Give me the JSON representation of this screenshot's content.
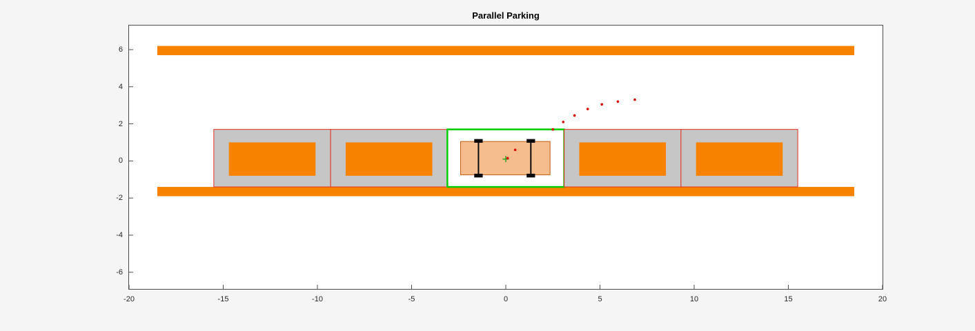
{
  "window": {
    "background": "#f5f5f5",
    "plot_background": "#ffffff"
  },
  "chart_data": {
    "type": "scatter",
    "title": "Parallel Parking",
    "axes": {
      "xlim": [
        -20,
        20
      ],
      "ylim": [
        -6.9,
        7.3
      ],
      "x_ticks": [
        -20,
        -15,
        -10,
        -5,
        0,
        5,
        10,
        15,
        20
      ],
      "y_ticks": [
        -6,
        -4,
        -2,
        0,
        2,
        4,
        6
      ],
      "axis_color": "#4a4a4a",
      "tick_label_color": "#262626",
      "grid": false
    },
    "colors": {
      "road": "#f78200",
      "spot_fill": "#c6c6c6",
      "spot_outline": "#e0301e",
      "target_outline": "#00cc00",
      "parked_car": "#f78200",
      "ego_fill": "#f5bd8e",
      "ego_outline": "#c55a11",
      "wheel": "#0a0a0a",
      "center_marker": "#20a020",
      "trajectory": "#e00000"
    },
    "road_edges": [
      {
        "name": "road-edge-top",
        "x": [
          -18.5,
          18.5
        ],
        "y": [
          5.7,
          6.2
        ]
      },
      {
        "name": "road-edge-bottom",
        "x": [
          -18.5,
          18.5
        ],
        "y": [
          -1.9,
          -1.4
        ]
      }
    ],
    "parking_spots": [
      {
        "x": [
          -15.5,
          -9.3
        ],
        "y": [
          -1.4,
          1.7
        ],
        "occupied": true,
        "target": false
      },
      {
        "x": [
          -9.3,
          -3.1
        ],
        "y": [
          -1.4,
          1.7
        ],
        "occupied": true,
        "target": false
      },
      {
        "x": [
          -3.1,
          3.1
        ],
        "y": [
          -1.4,
          1.7
        ],
        "occupied": false,
        "target": true
      },
      {
        "x": [
          3.1,
          9.3
        ],
        "y": [
          -1.4,
          1.7
        ],
        "occupied": true,
        "target": false
      },
      {
        "x": [
          9.3,
          15.5
        ],
        "y": [
          -1.4,
          1.7
        ],
        "occupied": true,
        "target": false
      }
    ],
    "parked_car_inset": 0.8,
    "parked_car_y": [
      -0.8,
      1.0
    ],
    "ego_vehicle": {
      "x": [
        -2.4,
        2.35
      ],
      "y": [
        -0.75,
        1.05
      ],
      "axles_x": [
        -1.45,
        1.33
      ],
      "axle_y": [
        -0.88,
        1.17
      ],
      "wheels_y": [
        -0.79,
        1.08
      ],
      "wheel_length": 0.45,
      "wheel_width": 0.2,
      "center_marker": [
        0,
        0.1
      ]
    },
    "trajectory_points": [
      [
        0.1,
        0.15
      ],
      [
        0.5,
        0.6
      ],
      [
        2.5,
        1.7
      ],
      [
        3.05,
        2.1
      ],
      [
        3.65,
        2.45
      ],
      [
        4.35,
        2.8
      ],
      [
        5.1,
        3.05
      ],
      [
        5.95,
        3.2
      ],
      [
        6.85,
        3.3
      ]
    ]
  }
}
